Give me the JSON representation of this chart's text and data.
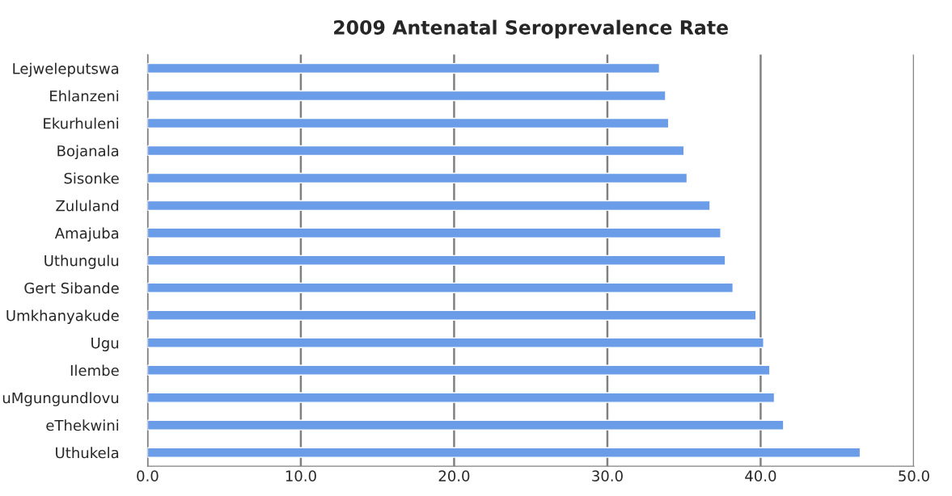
{
  "chart_data": {
    "type": "bar",
    "orientation": "horizontal",
    "title": "2009 Antenatal Seroprevalence Rate",
    "categories": [
      "Lejweleputswa",
      "Ehlanzeni",
      "Ekurhuleni",
      "Bojanala",
      "Sisonke",
      "Zululand",
      "Amajuba",
      "Uthungulu",
      "Gert Sibande",
      "Umkhanyakude",
      "Ugu",
      "Ilembe",
      "uMgungundlovu",
      "eThekwini",
      "Uthukela"
    ],
    "values": [
      33.4,
      33.8,
      34.0,
      35.0,
      35.2,
      36.7,
      37.4,
      37.7,
      38.2,
      39.7,
      40.2,
      40.6,
      40.9,
      41.5,
      46.5
    ],
    "color": "#6b9ce8",
    "xlim": [
      0,
      50
    ],
    "xticks": [
      {
        "value": 0,
        "label": "0.0"
      },
      {
        "value": 10,
        "label": "10.0"
      },
      {
        "value": 20,
        "label": "20.0"
      },
      {
        "value": 30,
        "label": "30.0"
      },
      {
        "value": 40,
        "label": "40.0"
      },
      {
        "value": 50,
        "label": "50.0"
      }
    ],
    "grid": "x",
    "legend": false
  }
}
